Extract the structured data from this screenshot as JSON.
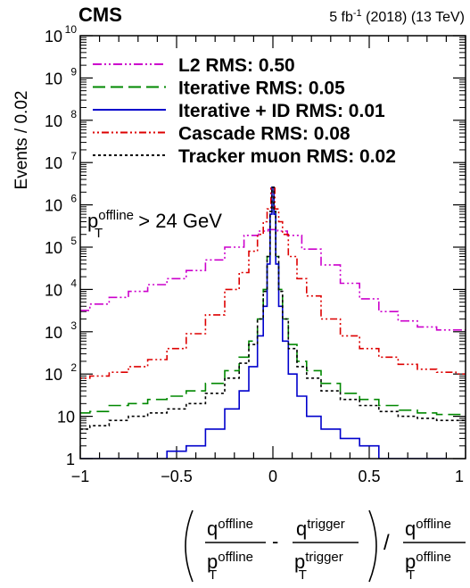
{
  "chart_data": {
    "type": "line",
    "title": "CMS",
    "lumi_label_main": "5 fb",
    "lumi_label_exp": "-1",
    "lumi_label_rest": " (2018) (13 TeV)",
    "ylabel": "Events / 0.02",
    "xlabel": {
      "q_offline": "q",
      "q_offline_sup": "offline",
      "pt_offline": "p",
      "pt_offline_sub": "T",
      "pt_offline_sup": "offline",
      "minus": "-",
      "q_trigger": "q",
      "q_trigger_sup": "trigger",
      "pt_trigger": "p",
      "pt_trigger_sub": "T",
      "pt_trigger_sup": "trigger",
      "slash": "/",
      "q_ratio": "q",
      "q_ratio_sup": "offline",
      "pt_ratio": "p",
      "pt_ratio_sub": "T",
      "pt_ratio_sup": "offline"
    },
    "annotation": {
      "p": "p",
      "sup": "offline",
      "sub": "T",
      "rest": " > 24 GeV"
    },
    "xlim": [
      -1,
      1
    ],
    "ylog": true,
    "ylim_exp": [
      0,
      10
    ],
    "x_ticks": [
      {
        "v": -1,
        "label": "−1"
      },
      {
        "v": -0.5,
        "label": "−0.5"
      },
      {
        "v": 0,
        "label": "0"
      },
      {
        "v": 0.5,
        "label": "0.5"
      },
      {
        "v": 1,
        "label": "1"
      }
    ],
    "y_ticks": [
      {
        "e": 0,
        "label": "1",
        "sup": ""
      },
      {
        "e": 1,
        "label": "10",
        "sup": ""
      },
      {
        "e": 2,
        "label": "10",
        "sup": "2"
      },
      {
        "e": 3,
        "label": "10",
        "sup": "3"
      },
      {
        "e": 4,
        "label": "10",
        "sup": "4"
      },
      {
        "e": 5,
        "label": "10",
        "sup": "5"
      },
      {
        "e": 6,
        "label": "10",
        "sup": "6"
      },
      {
        "e": 7,
        "label": "10",
        "sup": "7"
      },
      {
        "e": 8,
        "label": "10",
        "sup": "8"
      },
      {
        "e": 9,
        "label": "10",
        "sup": "9"
      },
      {
        "e": 10,
        "label": "10",
        "sup": "10"
      }
    ],
    "legend_position": "top",
    "series": [
      {
        "name": "L2 RMS: 0.50",
        "color": "#cc00cc",
        "dash": "10 3 2 3 2 3",
        "points": [
          [
            -1,
            3200
          ],
          [
            -0.9,
            4500
          ],
          [
            -0.8,
            6500
          ],
          [
            -0.7,
            9000
          ],
          [
            -0.6,
            13000
          ],
          [
            -0.5,
            18000
          ],
          [
            -0.4,
            28000
          ],
          [
            -0.3,
            50000
          ],
          [
            -0.2,
            100000
          ],
          [
            -0.1,
            190000
          ],
          [
            -0.05,
            240000
          ],
          [
            0,
            260000
          ],
          [
            0.05,
            240000
          ],
          [
            0.1,
            190000
          ],
          [
            0.2,
            90000
          ],
          [
            0.3,
            38000
          ],
          [
            0.4,
            14000
          ],
          [
            0.5,
            6000
          ],
          [
            0.6,
            3000
          ],
          [
            0.7,
            1800
          ],
          [
            0.8,
            1300
          ],
          [
            0.9,
            1100
          ],
          [
            1,
            1100
          ]
        ]
      },
      {
        "name": "Iterative RMS: 0.05",
        "color": "#008800",
        "dash": "14 6",
        "points": [
          [
            -1,
            12
          ],
          [
            -0.9,
            13
          ],
          [
            -0.8,
            18
          ],
          [
            -0.7,
            20
          ],
          [
            -0.6,
            25
          ],
          [
            -0.5,
            30
          ],
          [
            -0.4,
            40
          ],
          [
            -0.3,
            60
          ],
          [
            -0.2,
            120
          ],
          [
            -0.15,
            250
          ],
          [
            -0.1,
            600
          ],
          [
            -0.06,
            2000
          ],
          [
            -0.04,
            10000
          ],
          [
            -0.02,
            60000
          ],
          [
            -0.01,
            700000
          ],
          [
            0,
            2600000
          ],
          [
            0.01,
            700000
          ],
          [
            0.02,
            60000
          ],
          [
            0.04,
            10000
          ],
          [
            0.06,
            2000
          ],
          [
            0.1,
            500
          ],
          [
            0.15,
            200
          ],
          [
            0.2,
            120
          ],
          [
            0.3,
            60
          ],
          [
            0.4,
            35
          ],
          [
            0.5,
            25
          ],
          [
            0.6,
            18
          ],
          [
            0.7,
            14
          ],
          [
            0.8,
            12
          ],
          [
            0.9,
            11
          ],
          [
            1,
            11
          ]
        ]
      },
      {
        "name": "Iterative + ID RMS: 0.01",
        "color": "#0000cc",
        "dash": "",
        "points": [
          [
            -1,
            1
          ],
          [
            -0.9,
            1
          ],
          [
            -0.8,
            1
          ],
          [
            -0.7,
            1
          ],
          [
            -0.6,
            1
          ],
          [
            -0.5,
            1.5
          ],
          [
            -0.4,
            2
          ],
          [
            -0.3,
            5
          ],
          [
            -0.2,
            15
          ],
          [
            -0.15,
            40
          ],
          [
            -0.1,
            150
          ],
          [
            -0.06,
            800
          ],
          [
            -0.04,
            4000
          ],
          [
            -0.02,
            40000
          ],
          [
            -0.01,
            600000
          ],
          [
            0,
            2600000
          ],
          [
            0.01,
            600000
          ],
          [
            0.02,
            40000
          ],
          [
            0.04,
            4000
          ],
          [
            0.06,
            600
          ],
          [
            0.1,
            100
          ],
          [
            0.15,
            30
          ],
          [
            0.2,
            10
          ],
          [
            0.3,
            5
          ],
          [
            0.4,
            3
          ],
          [
            0.5,
            2
          ],
          [
            0.6,
            1
          ],
          [
            0.7,
            1
          ],
          [
            0.8,
            1
          ],
          [
            0.9,
            1
          ]
        ]
      },
      {
        "name": "Cascade RMS: 0.08",
        "color": "#dd0000",
        "dash": "2 3 2 3 8 3",
        "points": [
          [
            -1,
            80
          ],
          [
            -0.9,
            90
          ],
          [
            -0.8,
            110
          ],
          [
            -0.7,
            150
          ],
          [
            -0.6,
            220
          ],
          [
            -0.5,
            400
          ],
          [
            -0.4,
            900
          ],
          [
            -0.3,
            2500
          ],
          [
            -0.2,
            10000
          ],
          [
            -0.15,
            25000
          ],
          [
            -0.1,
            80000
          ],
          [
            -0.06,
            200000
          ],
          [
            -0.04,
            400000
          ],
          [
            -0.02,
            800000
          ],
          [
            0,
            2500000
          ],
          [
            0.02,
            800000
          ],
          [
            0.04,
            400000
          ],
          [
            0.06,
            200000
          ],
          [
            0.1,
            60000
          ],
          [
            0.15,
            18000
          ],
          [
            0.2,
            7000
          ],
          [
            0.3,
            2000
          ],
          [
            0.4,
            800
          ],
          [
            0.5,
            400
          ],
          [
            0.6,
            250
          ],
          [
            0.7,
            170
          ],
          [
            0.8,
            130
          ],
          [
            0.9,
            110
          ],
          [
            1,
            100
          ]
        ]
      },
      {
        "name": "Tracker muon RMS: 0.02",
        "color": "#000000",
        "dash": "3 3",
        "points": [
          [
            -1,
            5
          ],
          [
            -0.9,
            6
          ],
          [
            -0.8,
            8
          ],
          [
            -0.7,
            10
          ],
          [
            -0.6,
            12
          ],
          [
            -0.5,
            15
          ],
          [
            -0.4,
            20
          ],
          [
            -0.3,
            35
          ],
          [
            -0.2,
            80
          ],
          [
            -0.15,
            180
          ],
          [
            -0.1,
            500
          ],
          [
            -0.06,
            2000
          ],
          [
            -0.04,
            9000
          ],
          [
            -0.02,
            60000
          ],
          [
            -0.01,
            700000
          ],
          [
            0,
            2600000
          ],
          [
            0.01,
            700000
          ],
          [
            0.02,
            60000
          ],
          [
            0.04,
            9000
          ],
          [
            0.06,
            2000
          ],
          [
            0.1,
            400
          ],
          [
            0.15,
            150
          ],
          [
            0.2,
            80
          ],
          [
            0.3,
            40
          ],
          [
            0.4,
            25
          ],
          [
            0.5,
            18
          ],
          [
            0.6,
            13
          ],
          [
            0.7,
            10
          ],
          [
            0.8,
            9
          ],
          [
            0.9,
            8
          ],
          [
            1,
            8
          ]
        ]
      }
    ]
  }
}
